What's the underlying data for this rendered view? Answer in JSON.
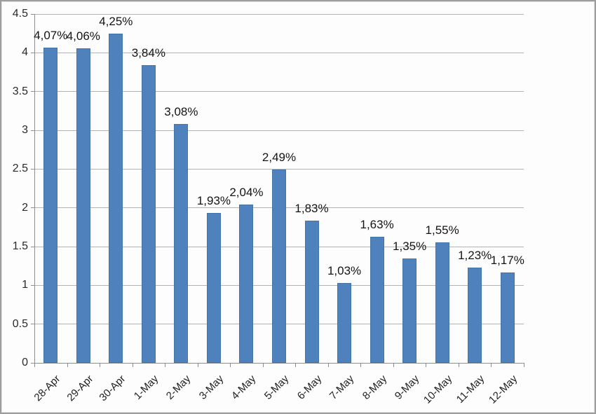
{
  "window": {
    "kind": "embedded-chart-image",
    "background": "#fdfdfd",
    "frame_border_color": "#9d9d9d"
  },
  "chart_data": {
    "type": "bar",
    "title": "",
    "xlabel": "",
    "ylabel": "",
    "categories": [
      "28-Apr",
      "29-Apr",
      "30-Apr",
      "1-May",
      "2-May",
      "3-May",
      "4-May",
      "5-May",
      "6-May",
      "7-May",
      "8-May",
      "9-May",
      "10-May",
      "11-May",
      "12-May"
    ],
    "values": [
      4.07,
      4.06,
      4.25,
      3.84,
      3.08,
      1.93,
      2.04,
      2.49,
      1.83,
      1.03,
      1.63,
      1.35,
      1.55,
      1.23,
      1.17
    ],
    "data_labels": [
      "4,07%",
      "4,06%",
      "4,25%",
      "3,84%",
      "3,08%",
      "1,93%",
      "2,04%",
      "2,49%",
      "1,83%",
      "1,03%",
      "1,63%",
      "1,35%",
      "1,55%",
      "1,23%",
      "1,17%"
    ],
    "ylim": [
      0,
      4.5
    ],
    "ytick_step": 0.5,
    "yticks": [
      {
        "value": 0,
        "label": "0"
      },
      {
        "value": 0.5,
        "label": "0.5"
      },
      {
        "value": 1,
        "label": "1"
      },
      {
        "value": 1.5,
        "label": "1.5"
      },
      {
        "value": 2,
        "label": "2"
      },
      {
        "value": 2.5,
        "label": "2.5"
      },
      {
        "value": 3,
        "label": "3"
      },
      {
        "value": 3.5,
        "label": "3.5"
      },
      {
        "value": 4,
        "label": "4"
      },
      {
        "value": 4.5,
        "label": "4.5"
      }
    ],
    "grid": true,
    "legend_position": "none",
    "colors": {
      "bar_fill": "#4f81bd",
      "bar_border": "#4475a8",
      "gridline": "#b3b3b3",
      "axis_line": "#8e8e8e",
      "data_label_text": "#141414",
      "ytick_label_text": "#2a2a2a",
      "xtick_label_text": "#1f1f1f"
    }
  }
}
